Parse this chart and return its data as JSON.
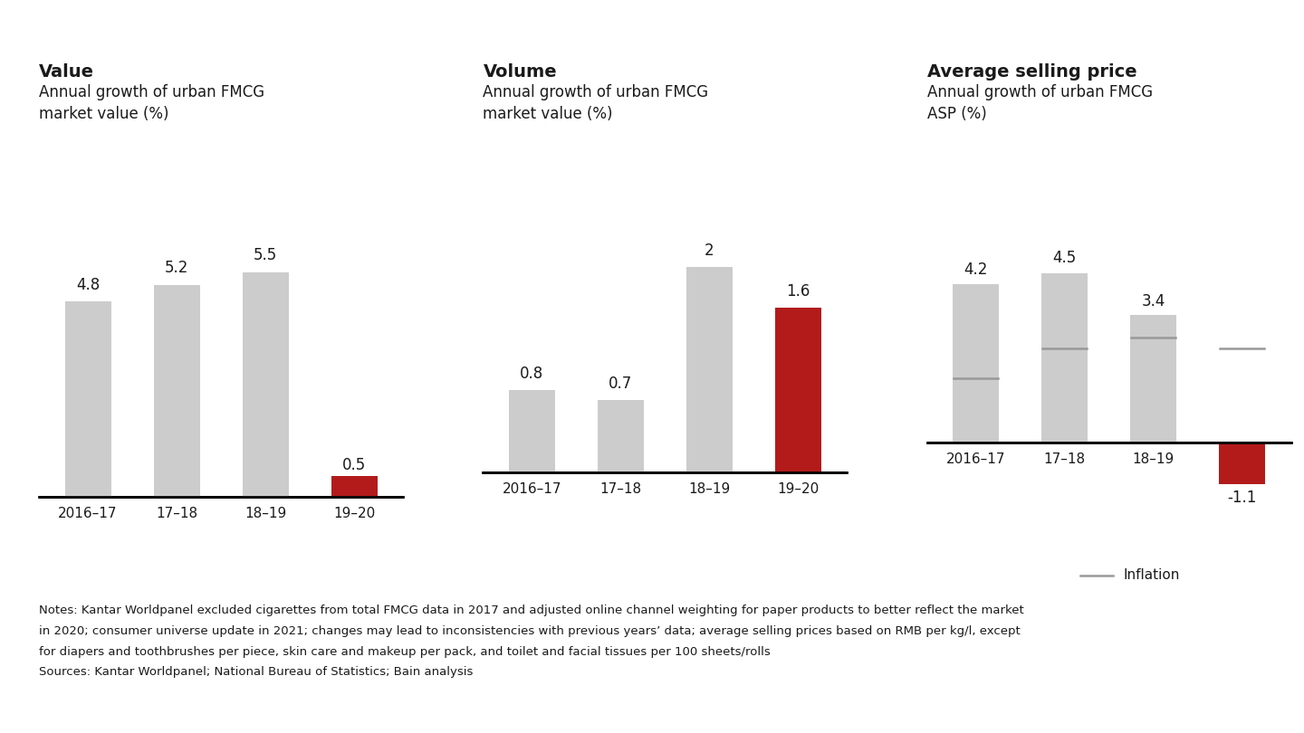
{
  "panels": [
    {
      "title": "Value",
      "subtitle": "Annual growth of urban FMCG\nmarket value (%)",
      "categories": [
        "2016–17",
        "17–18",
        "18–19",
        "19–20"
      ],
      "values": [
        4.8,
        5.2,
        5.5,
        0.5
      ],
      "has_inflation": false,
      "inflation": null
    },
    {
      "title": "Volume",
      "subtitle": "Annual growth of urban FMCG\nmarket value (%)",
      "categories": [
        "2016–17",
        "17–18",
        "18–19",
        "19–20"
      ],
      "values": [
        0.8,
        0.7,
        2.0,
        1.6
      ],
      "has_inflation": false,
      "inflation": null
    },
    {
      "title": "Average selling price",
      "subtitle": "Annual growth of urban FMCG\nASP (%)",
      "categories": [
        "2016–17",
        "17–18",
        "18–19",
        "19–20"
      ],
      "values": [
        4.2,
        4.5,
        3.4,
        -1.1
      ],
      "has_inflation": true,
      "inflation": [
        1.7,
        2.5,
        2.8,
        2.5
      ]
    }
  ],
  "notes_line1": "Notes: Kantar Worldpanel excluded cigarettes from total FMCG data in 2017 and adjusted online channel weighting for paper products to better reflect the market",
  "notes_line2": "in 2020; consumer universe update in 2021; changes may lead to inconsistencies with previous years’ data; average selling prices based on RMB per kg/l, except",
  "notes_line3": "for diapers and toothbrushes per piece, skin care and makeup per pack, and toilet and facial tissues per 100 sheets/rolls",
  "sources": "Sources: Kantar Worldpanel; National Bureau of Statistics; Bain analysis",
  "title_fontsize": 14,
  "subtitle_fontsize": 12,
  "bar_label_fontsize": 12,
  "tick_fontsize": 11,
  "notes_fontsize": 9.5,
  "gray_color": "#cccccc",
  "red_color": "#b31b1b",
  "inflation_color": "#999999",
  "text_color": "#1a1a1a"
}
